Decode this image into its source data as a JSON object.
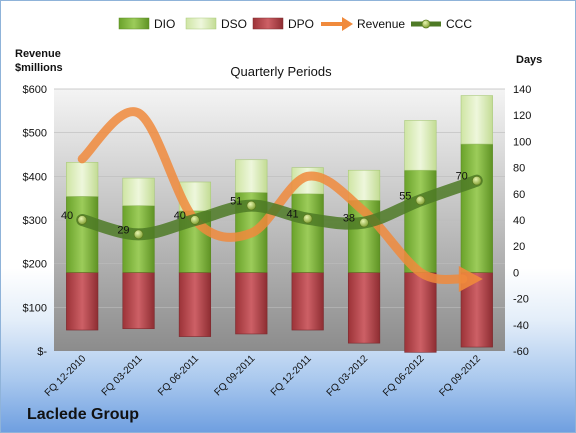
{
  "chart_data": {
    "type": "bar",
    "title": "Quarterly Periods",
    "company": "Laclede Group",
    "y_left_label_line1": "Revenue",
    "y_left_label_line2": "$millions",
    "y_right_label": "Days",
    "categories": [
      "FQ 12-2010",
      "FQ 03-2011",
      "FQ 06-2011",
      "FQ 09-2011",
      "FQ 12-2011",
      "FQ 03-2012",
      "FQ 06-2012",
      "FQ 09-2012"
    ],
    "ylim_left": [
      0,
      600
    ],
    "left_ticks": [
      "$-",
      "$100",
      "$200",
      "$300",
      "$400",
      "$500",
      "$600"
    ],
    "ylim_right": [
      -60,
      140
    ],
    "right_ticks": [
      "-60",
      "-40",
      "-20",
      "0",
      "20",
      "40",
      "60",
      "80",
      "100",
      "120",
      "140"
    ],
    "legend_position": "top",
    "series": [
      {
        "name": "DIO",
        "color": "#7fb23a",
        "values": [
          58,
          51,
          47,
          61,
          60,
          55,
          78,
          98
        ]
      },
      {
        "name": "DSO",
        "color": "#d8ebb6",
        "values": [
          26,
          21,
          22,
          25,
          20,
          23,
          38,
          37
        ]
      },
      {
        "name": "DPO",
        "color": "#b3444a",
        "values": [
          -44,
          -43,
          -49,
          -47,
          -44,
          -54,
          -61,
          -57
        ]
      },
      {
        "name": "Revenue",
        "color": "#f08a3c",
        "values": [
          440,
          545,
          300,
          270,
          400,
          320,
          180,
          165
        ]
      },
      {
        "name": "CCC",
        "color": "#4e7a26",
        "values": [
          40,
          29,
          40,
          51,
          41,
          38,
          55,
          70
        ]
      }
    ],
    "ccc_labels": [
      "40",
      "29",
      "40",
      "51",
      "41",
      "38",
      "55",
      "70"
    ]
  }
}
